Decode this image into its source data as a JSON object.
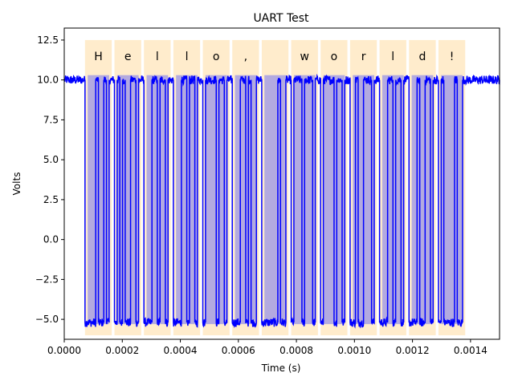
{
  "chart_data": {
    "type": "line",
    "title": "UART Test",
    "xlabel": "Time (s)",
    "ylabel": "Volts",
    "xlim": [
      0.0,
      0.0015
    ],
    "ylim": [
      -6.25,
      13.25
    ],
    "grid": false,
    "x_ticks": [
      0.0,
      0.0002,
      0.0004,
      0.0006,
      0.0008,
      0.001,
      0.0012,
      0.0014
    ],
    "x_tick_labels": [
      "0.0000",
      "0.0002",
      "0.0004",
      "0.0006",
      "0.0008",
      "0.0010",
      "0.0012",
      "0.0014"
    ],
    "y_ticks": [
      -5.0,
      -2.5,
      0.0,
      2.5,
      5.0,
      7.5,
      10.0,
      12.5
    ],
    "y_tick_labels": [
      "−5.0",
      "−2.5",
      "0.0",
      "2.5",
      "5.0",
      "7.5",
      "10.0",
      "12.5"
    ],
    "signal": {
      "color": "#0000ff",
      "idle_high": 10.0,
      "low": -5.2,
      "frame_start": 7.15e-05,
      "bit_time": 9.25e-06,
      "frame_spacing": 0.0001015,
      "bits_per_frame": 10,
      "bit_order": "lsb-first",
      "t_end": 0.0015
    },
    "frames": [
      {
        "char": "H",
        "x0": 7.15e-05,
        "x1": 0.0001637
      },
      {
        "char": "e",
        "x0": 0.000173,
        "x1": 0.0002652
      },
      {
        "char": "l",
        "x0": 0.0002745,
        "x1": 0.0003667
      },
      {
        "char": "l",
        "x0": 0.000376,
        "x1": 0.0004682
      },
      {
        "char": "o",
        "x0": 0.0004775,
        "x1": 0.0005697
      },
      {
        "char": ",",
        "x0": 0.000579,
        "x1": 0.0006712
      },
      {
        "char": " ",
        "x0": 0.0006805,
        "x1": 0.0007727
      },
      {
        "char": "w",
        "x0": 0.000782,
        "x1": 0.0008742
      },
      {
        "char": "o",
        "x0": 0.0008835,
        "x1": 0.0009757
      },
      {
        "char": "r",
        "x0": 0.000985,
        "x1": 0.0010772
      },
      {
        "char": "l",
        "x0": 0.0010865,
        "x1": 0.0011787
      },
      {
        "char": "d",
        "x0": 0.001188,
        "x1": 0.0012802
      },
      {
        "char": "!",
        "x0": 0.0012895,
        "x1": 0.0013817
      }
    ],
    "frame_box": {
      "y_bottom": -6.0,
      "y_top": 12.5,
      "color": "#ffeccc"
    },
    "data_box": {
      "y_bottom": -5.3,
      "y_top": 10.3,
      "color": "#b3aae0"
    },
    "char_label_y": 11.5
  }
}
